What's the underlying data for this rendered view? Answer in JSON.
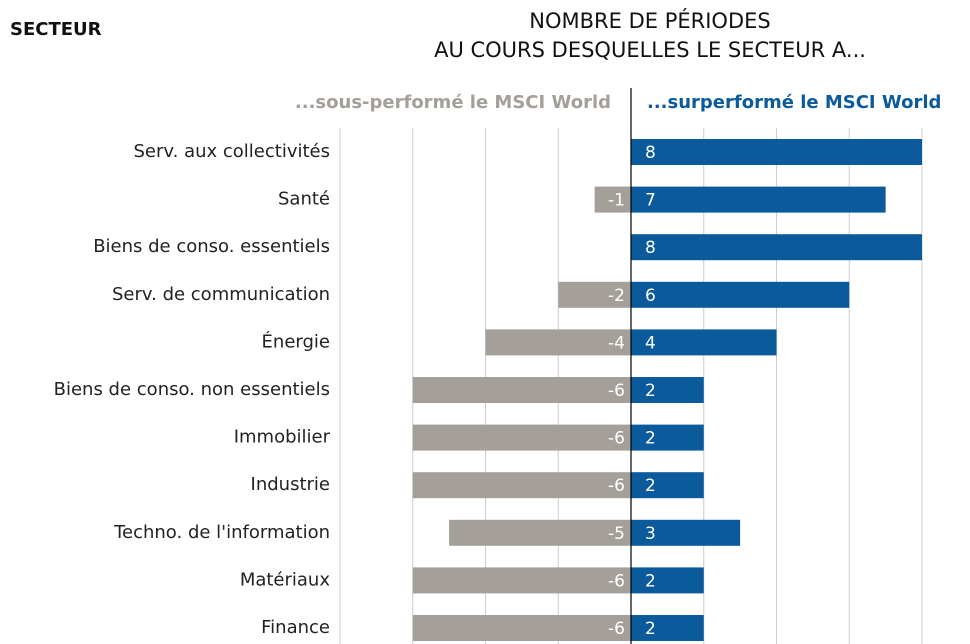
{
  "chart_data": {
    "type": "diverging-bar",
    "y_axis_label": "SECTEUR",
    "title": [
      "NOMBRE DE PÉRIODES",
      "AU COURS DESQUELLES LE SECTEUR A..."
    ],
    "categories": [
      "Serv. aux collectivités",
      "Santé",
      "Biens de conso. essentiels",
      "Serv. de communication",
      "Énergie",
      "Biens de conso. non essentiels",
      "Immobilier",
      "Industrie",
      "Techno. de l'information",
      "Matériaux",
      "Finance"
    ],
    "series": [
      {
        "name": "...sous-performé le MSCI World",
        "color": "#a59f9a",
        "values": [
          null,
          -1,
          null,
          -2,
          -4,
          -6,
          -6,
          -6,
          -5,
          -6,
          -6
        ]
      },
      {
        "name": "...surperformé le MSCI World",
        "color": "#0b5a9c",
        "values": [
          8,
          7,
          8,
          6,
          4,
          2,
          2,
          2,
          3,
          2,
          2
        ]
      }
    ],
    "xlim": [
      -8,
      8
    ],
    "xticks": [
      -8,
      -6,
      -4,
      -2,
      0,
      2,
      4,
      6,
      8
    ],
    "grid": true
  }
}
